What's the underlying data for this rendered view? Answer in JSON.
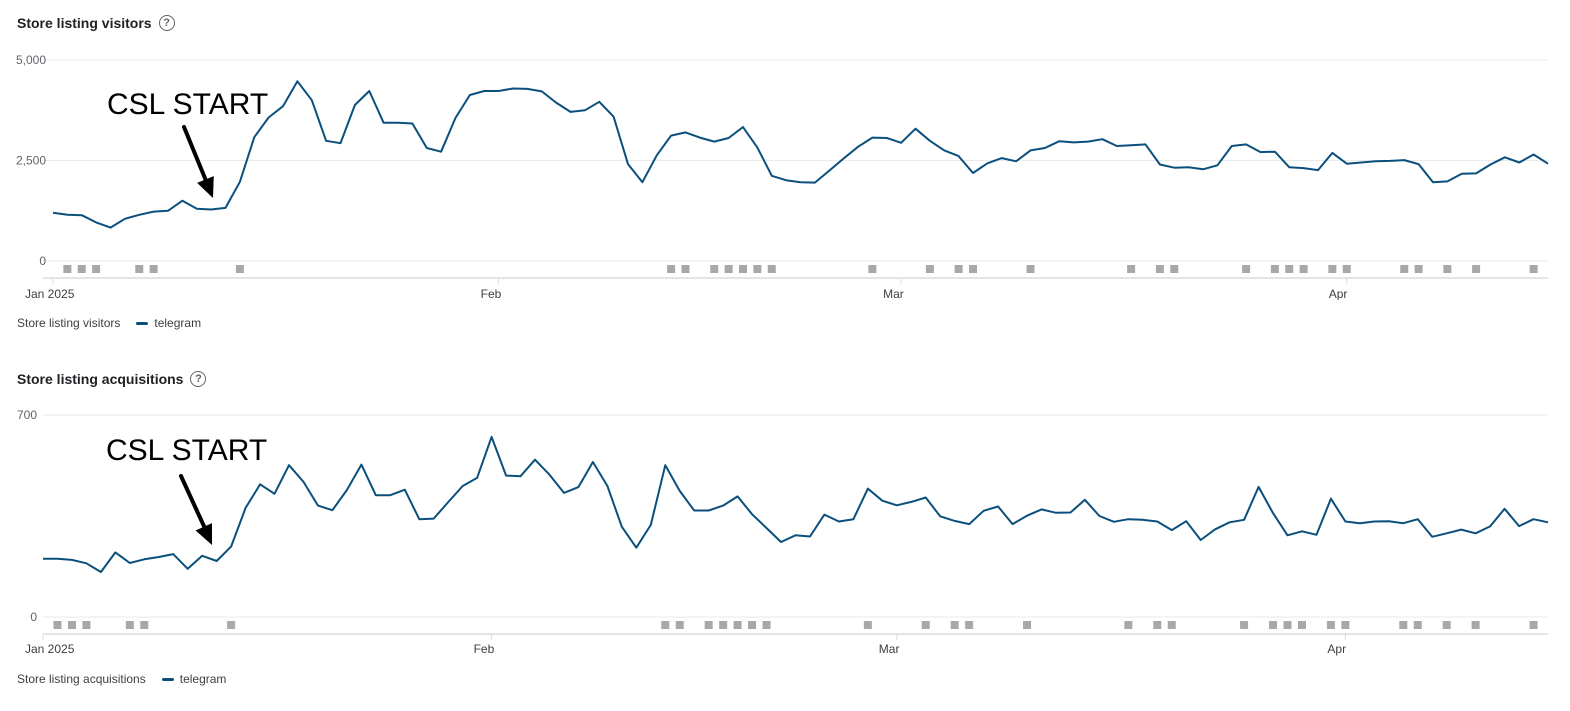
{
  "chart_data": [
    {
      "type": "line",
      "title": "Store listing visitors",
      "ylim": [
        0,
        5000
      ],
      "yticks": [
        "5,000",
        "2,500",
        "0"
      ],
      "ytick_values": [
        5000,
        2500,
        0
      ],
      "xticks": [
        {
          "label": "Jan 2025",
          "index": 0
        },
        {
          "label": "Feb",
          "index": 31
        },
        {
          "label": "Mar",
          "index": 59
        },
        {
          "label": "Apr",
          "index": 90
        }
      ],
      "legend_title": "Store listing visitors",
      "series": [
        {
          "name": "telegram",
          "color": "#0b4f7c",
          "values": [
            1200,
            1150,
            1140,
            960,
            830,
            1050,
            1150,
            1230,
            1250,
            1500,
            1300,
            1280,
            1320,
            1970,
            3080,
            3570,
            3850,
            4470,
            4000,
            2990,
            2930,
            3880,
            4230,
            3440,
            3440,
            3420,
            2810,
            2720,
            3560,
            4130,
            4230,
            4230,
            4290,
            4280,
            4220,
            3940,
            3710,
            3750,
            3960,
            3590,
            2410,
            1960,
            2630,
            3120,
            3200,
            3070,
            2970,
            3060,
            3330,
            2820,
            2120,
            2010,
            1960,
            1950,
            2250,
            2550,
            2840,
            3070,
            3060,
            2940,
            3290,
            2990,
            2750,
            2610,
            2190,
            2430,
            2560,
            2480,
            2750,
            2810,
            2980,
            2950,
            2970,
            3030,
            2860,
            2880,
            2900,
            2400,
            2320,
            2330,
            2280,
            2380,
            2860,
            2900,
            2710,
            2720,
            2330,
            2310,
            2260,
            2690,
            2420,
            2450,
            2480,
            2490,
            2510,
            2410,
            1960,
            1980,
            2170,
            2180,
            2400,
            2580,
            2450,
            2650,
            2420
          ]
        }
      ],
      "event_markers": [
        1,
        2,
        3,
        6,
        7,
        13,
        43,
        44,
        46,
        47,
        48,
        49,
        50,
        57,
        61,
        63,
        64,
        68,
        75,
        77,
        78,
        83,
        85,
        86,
        87,
        89,
        90,
        94,
        95,
        97,
        99,
        103
      ],
      "annotation": "CSL START",
      "annotation_index": 12
    },
    {
      "type": "line",
      "title": "Store listing acquisitions",
      "ylim": [
        0,
        700
      ],
      "yticks": [
        "700",
        "0"
      ],
      "ytick_values": [
        700,
        0
      ],
      "xticks": [
        {
          "label": "Jan 2025",
          "index": 0
        },
        {
          "label": "Feb",
          "index": 31
        },
        {
          "label": "Mar",
          "index": 59
        },
        {
          "label": "Apr",
          "index": 90
        }
      ],
      "legend_title": "Store listing acquisitions",
      "series": [
        {
          "name": "telegram",
          "color": "#0b4f7c",
          "values": [
            202,
            202,
            198,
            186,
            156,
            224,
            187,
            200,
            208,
            218,
            167,
            212,
            194,
            244,
            378,
            460,
            427,
            526,
            468,
            386,
            370,
            440,
            528,
            422,
            422,
            441,
            339,
            341,
            398,
            454,
            482,
            624,
            490,
            488,
            545,
            493,
            430,
            450,
            537,
            454,
            313,
            240,
            319,
            526,
            437,
            369,
            369,
            386,
            418,
            356,
            308,
            260,
            283,
            279,
            355,
            331,
            339,
            445,
            403,
            387,
            399,
            414,
            349,
            333,
            322,
            368,
            383,
            322,
            351,
            373,
            361,
            362,
            406,
            350,
            330,
            339,
            337,
            331,
            301,
            332,
            267,
            304,
            328,
            337,
            451,
            360,
            283,
            297,
            285,
            410,
            331,
            325,
            331,
            332,
            325,
            339,
            278,
            290,
            303,
            290,
            314,
            375,
            315,
            339,
            328
          ]
        }
      ],
      "event_markers": [
        1,
        2,
        3,
        6,
        7,
        13,
        43,
        44,
        46,
        47,
        48,
        49,
        50,
        57,
        61,
        63,
        64,
        68,
        75,
        77,
        78,
        83,
        85,
        86,
        87,
        89,
        90,
        94,
        95,
        97,
        99,
        103
      ],
      "annotation": "CSL START",
      "annotation_index": 12
    }
  ]
}
